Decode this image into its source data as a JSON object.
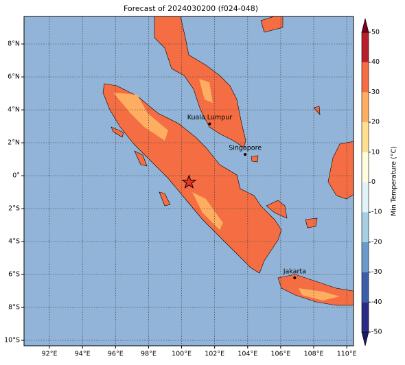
{
  "chart_data": {
    "type": "map",
    "title": "Forecast of 2024030200 (f024-048)",
    "xlim": [
      90.46,
      110.41
    ],
    "ylim": [
      -10.33,
      9.67
    ],
    "xticks": [
      {
        "value": 92,
        "label": "92°E"
      },
      {
        "value": 94,
        "label": "94°E"
      },
      {
        "value": 96,
        "label": "96°E"
      },
      {
        "value": 98,
        "label": "98°E"
      },
      {
        "value": 100,
        "label": "100°E"
      },
      {
        "value": 102,
        "label": "102°E"
      },
      {
        "value": 104,
        "label": "104°E"
      },
      {
        "value": 106,
        "label": "106°E"
      },
      {
        "value": 108,
        "label": "108°E"
      },
      {
        "value": 110,
        "label": "110°E"
      }
    ],
    "yticks": [
      {
        "value": 8,
        "label": "8°N"
      },
      {
        "value": 6,
        "label": "6°N"
      },
      {
        "value": 4,
        "label": "4°N"
      },
      {
        "value": 2,
        "label": "2°N"
      },
      {
        "value": 0,
        "label": "0°"
      },
      {
        "value": -2,
        "label": "2°S"
      },
      {
        "value": -4,
        "label": "4°S"
      },
      {
        "value": -6,
        "label": "6°S"
      },
      {
        "value": -8,
        "label": "8°S"
      },
      {
        "value": -10,
        "label": "10°S"
      }
    ],
    "grid": true,
    "sea_color": "#92b4d8",
    "land_color": "#f46d43",
    "warm_color": "#fdae61",
    "cities": [
      {
        "name": "Kuala Lumpur",
        "lon": 101.7,
        "lat": 3.15
      },
      {
        "name": "Singapore",
        "lon": 103.85,
        "lat": 1.29
      },
      {
        "name": "Jakarta",
        "lon": 106.85,
        "lat": -6.2
      }
    ],
    "star": {
      "lon": 100.45,
      "lat": -0.4,
      "color": "#e8322a"
    },
    "colorbar": {
      "label": "Min Temperature (°C)",
      "ticks": [
        -50,
        -40,
        -30,
        -20,
        -10,
        0,
        10,
        20,
        30,
        40,
        50
      ],
      "colors": [
        "#2b2c86",
        "#3d5fa9",
        "#6a9acb",
        "#a6cfe4",
        "#e2f3f8",
        "#fffde0",
        "#fee090",
        "#fdae61",
        "#f46d43",
        "#b81f2c"
      ],
      "extend_colors": [
        "#1a1a66",
        "#7a0022"
      ]
    }
  }
}
